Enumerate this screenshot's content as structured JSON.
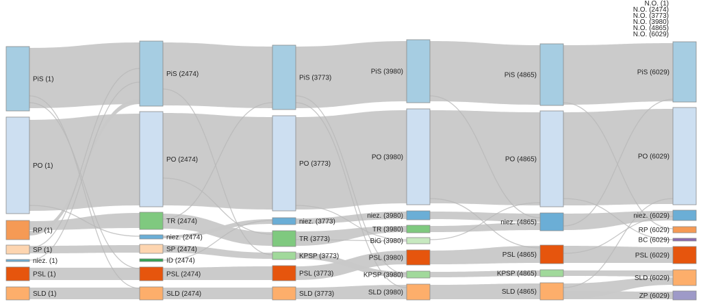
{
  "columns": [
    {
      "nodes": [
        {
          "id": "c0_pis",
          "label": "PiS (1)",
          "color": "#a6cde2"
        },
        {
          "id": "c0_po",
          "label": "PO (1)",
          "color": "#cddff1"
        },
        {
          "id": "c0_rp",
          "label": "RP (1)",
          "color": "#f59a55"
        },
        {
          "id": "c0_sp",
          "label": "SP (1)",
          "color": "#fdd5b0"
        },
        {
          "id": "c0_niez",
          "label": "niez. (1)",
          "color": "#6baed6"
        },
        {
          "id": "c0_psl",
          "label": "PSL (1)",
          "color": "#e6550d"
        },
        {
          "id": "c0_sld",
          "label": "SLD (1)",
          "color": "#fdae6b"
        }
      ]
    },
    {
      "nodes": [
        {
          "id": "c1_pis",
          "label": "PiS (2474)",
          "color": "#a6cde2"
        },
        {
          "id": "c1_po",
          "label": "PO (2474)",
          "color": "#cddff1"
        },
        {
          "id": "c1_tr",
          "label": "TR (2474)",
          "color": "#7fc97f"
        },
        {
          "id": "c1_niez",
          "label": "niez. (2474)",
          "color": "#6baed6"
        },
        {
          "id": "c1_sp",
          "label": "SP (2474)",
          "color": "#fdd5b0"
        },
        {
          "id": "c1_id",
          "label": "ID (2474)",
          "color": "#31a354"
        },
        {
          "id": "c1_psl",
          "label": "PSL (2474)",
          "color": "#e6550d"
        },
        {
          "id": "c1_sld",
          "label": "SLD (2474)",
          "color": "#fdae6b"
        }
      ]
    },
    {
      "nodes": [
        {
          "id": "c2_pis",
          "label": "PiS (3773)",
          "color": "#a6cde2"
        },
        {
          "id": "c2_po",
          "label": "PO (3773)",
          "color": "#cddff1"
        },
        {
          "id": "c2_niez",
          "label": "niez. (3773)",
          "color": "#6baed6"
        },
        {
          "id": "c2_tr",
          "label": "TR (3773)",
          "color": "#7fc97f"
        },
        {
          "id": "c2_kpsp",
          "label": "KPSP (3773)",
          "color": "#a1d99b"
        },
        {
          "id": "c2_psl",
          "label": "PSL (3773)",
          "color": "#e6550d"
        },
        {
          "id": "c2_sld",
          "label": "SLD (3773)",
          "color": "#fdae6b"
        }
      ]
    },
    {
      "nodes": [
        {
          "id": "c3_pis",
          "label": "PiS (3980)",
          "color": "#a6cde2"
        },
        {
          "id": "c3_po",
          "label": "PO (3980)",
          "color": "#cddff1"
        },
        {
          "id": "c3_niez",
          "label": "niez. (3980)",
          "color": "#6baed6"
        },
        {
          "id": "c3_tr",
          "label": "TR (3980)",
          "color": "#7fc97f"
        },
        {
          "id": "c3_big",
          "label": "BiG (3980)",
          "color": "#c7e9c0"
        },
        {
          "id": "c3_psl",
          "label": "PSL (3980)",
          "color": "#e6550d"
        },
        {
          "id": "c3_kpsp",
          "label": "KPSP (3980)",
          "color": "#a1d99b"
        },
        {
          "id": "c3_sld",
          "label": "SLD (3980)",
          "color": "#fdae6b"
        }
      ]
    },
    {
      "nodes": [
        {
          "id": "c4_pis",
          "label": "PiS (4865)",
          "color": "#a6cde2"
        },
        {
          "id": "c4_po",
          "label": "PO (4865)",
          "color": "#cddff1"
        },
        {
          "id": "c4_niez",
          "label": "niez. (4865)",
          "color": "#6baed6"
        },
        {
          "id": "c4_psl",
          "label": "PSL (4865)",
          "color": "#e6550d"
        },
        {
          "id": "c4_kpsp",
          "label": "KPSP (4865)",
          "color": "#a1d99b"
        },
        {
          "id": "c4_sld",
          "label": "SLD (4865)",
          "color": "#fdae6b"
        }
      ]
    },
    {
      "nodes": [
        {
          "id": "c5_pis",
          "label": "PiS (6029)",
          "color": "#a6cde2"
        },
        {
          "id": "c5_po",
          "label": "PO (6029)",
          "color": "#cddff1"
        },
        {
          "id": "c5_niez",
          "label": "niez. (6029)",
          "color": "#6baed6"
        },
        {
          "id": "c5_rp",
          "label": "RP (6029)",
          "color": "#f59a55"
        },
        {
          "id": "c5_bc",
          "label": "BC (6029)",
          "color": "#8c6bb1"
        },
        {
          "id": "c5_psl",
          "label": "PSL (6029)",
          "color": "#e6550d"
        },
        {
          "id": "c5_sld",
          "label": "SLD (6029)",
          "color": "#fdae6b"
        },
        {
          "id": "c5_zp",
          "label": "ZP (6029)",
          "color": "#9e9ac8"
        }
      ]
    }
  ],
  "no_group_labels": [
    "N.O. (1)",
    "N.O. (2474)",
    "N.O. (3773)",
    "N.O. (3980)",
    "N.O. (4865)",
    "N.O. (6029)"
  ],
  "link_color": "#c8c8c8",
  "node_stroke": "#8a8a8a"
}
